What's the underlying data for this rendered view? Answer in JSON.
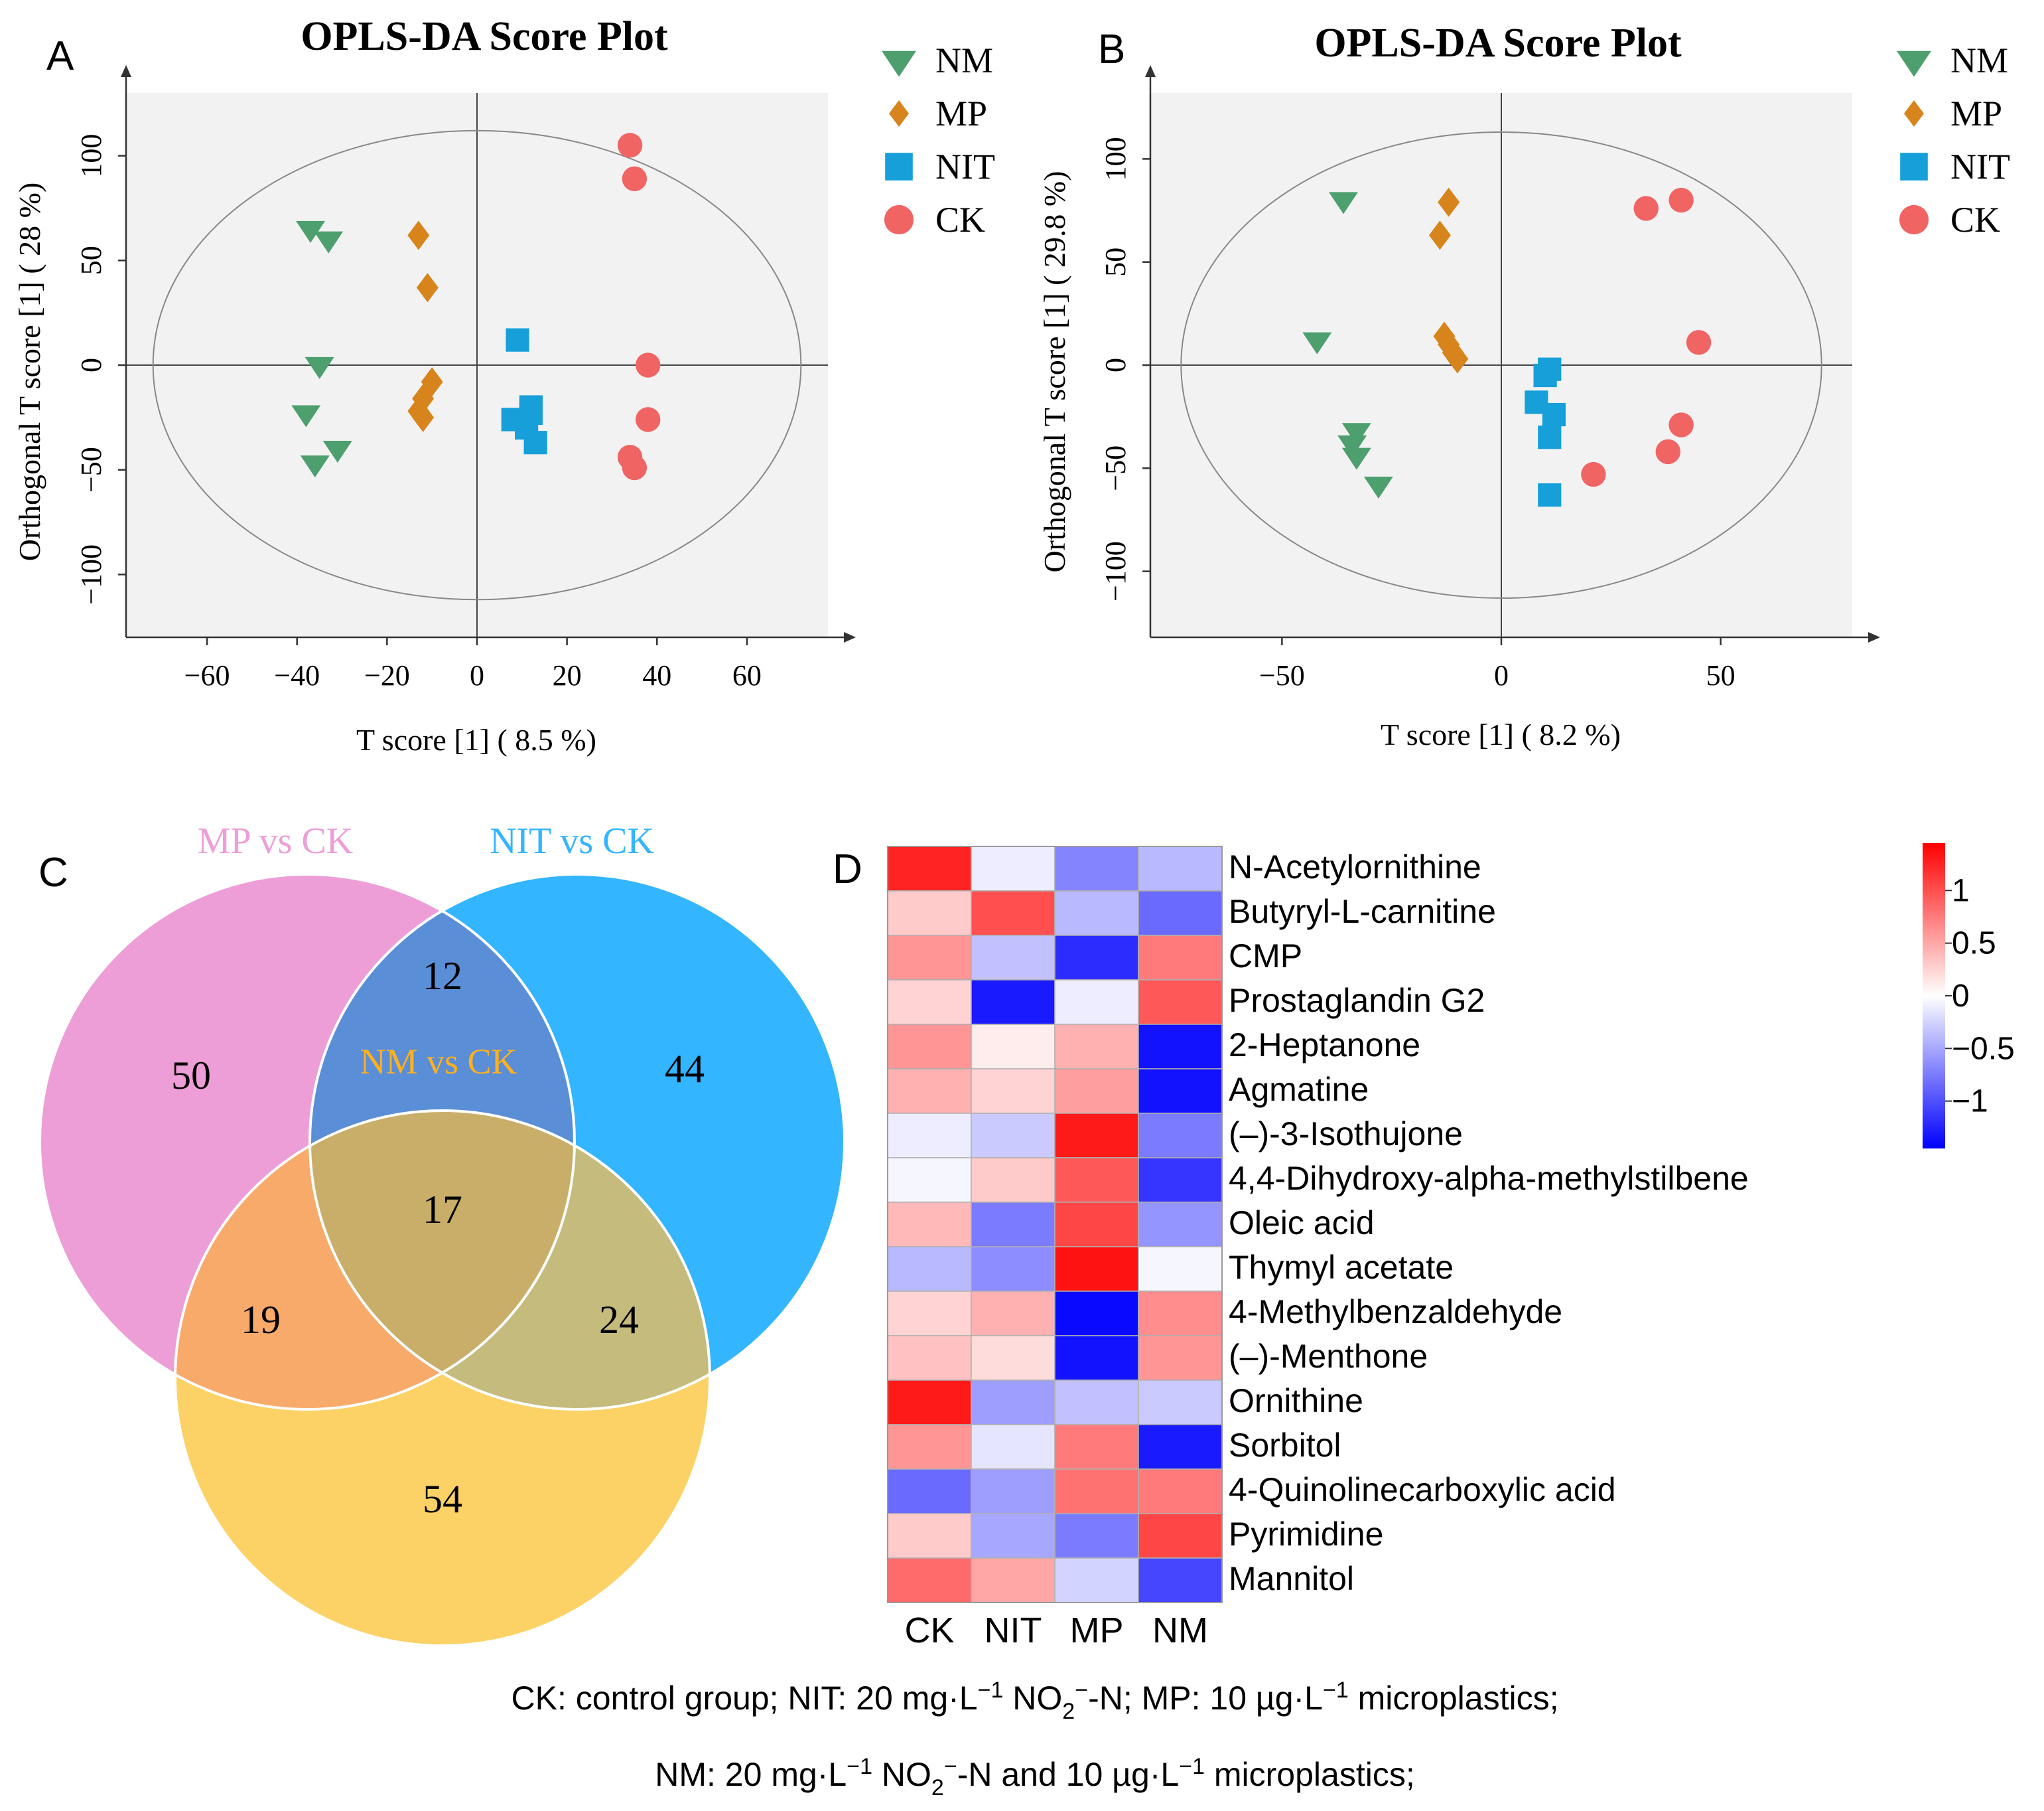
{
  "panel_labels": {
    "a": "A",
    "b": "B",
    "c": "C",
    "d": "D"
  },
  "colors": {
    "NM": "#4d9f6e",
    "MP": "#d8841c",
    "NIT": "#169fd8",
    "CK": "#f06464",
    "venn_mp": "#ee9ed6",
    "venn_nit": "#33b5ff",
    "venn_nm": "#fcd266",
    "venn_mp_nit": "#5a8ed6",
    "venn_mp_nm": "#f8aa6a",
    "venn_nit_nm": "#c4bb7c",
    "venn_all": "#c9ae6a",
    "plot_bg": "#f2f2f2",
    "ellipse": "#888888"
  },
  "chart_data": [
    {
      "id": "A",
      "type": "scatter",
      "title": "OPLS-DA Score Plot",
      "xlabel": "T score [1] ( 8.5 %)",
      "ylabel": "Orthogonal T score [1] ( 28 %)",
      "xlim": [
        -78,
        78
      ],
      "ylim": [
        -130,
        130
      ],
      "xticks": [
        -60,
        -40,
        -20,
        0,
        20,
        40,
        60
      ],
      "xtick_labels": [
        "−60",
        "−40",
        "−20",
        "0",
        "20",
        "40",
        "60"
      ],
      "yticks": [
        -100,
        -50,
        0,
        50,
        100
      ],
      "ytick_labels": [
        "−100",
        "−50",
        "0",
        "50",
        "100"
      ],
      "ellipse": {
        "rx": 72,
        "ry": 112
      },
      "series": [
        {
          "name": "NM",
          "marker": "triangle-down",
          "x": [
            -37,
            -33,
            -35,
            -38,
            -31,
            -36
          ],
          "y": [
            65,
            60,
            0,
            -23,
            -40,
            -47
          ]
        },
        {
          "name": "MP",
          "marker": "diamond",
          "x": [
            -13,
            -11,
            -10,
            -12,
            -13,
            -12
          ],
          "y": [
            62,
            37,
            -8,
            -16,
            -22,
            -25
          ]
        },
        {
          "name": "NIT",
          "marker": "square",
          "x": [
            9,
            12,
            12,
            8,
            11,
            13
          ],
          "y": [
            12,
            -20,
            -23,
            -26,
            -30,
            -37
          ]
        },
        {
          "name": "CK",
          "marker": "circle",
          "x": [
            34,
            35,
            38,
            38,
            34,
            35
          ],
          "y": [
            105,
            89,
            0,
            -26,
            -44,
            -49
          ]
        }
      ]
    },
    {
      "id": "B",
      "type": "scatter",
      "title": "OPLS-DA Score Plot",
      "xlabel": "T score [1] ( 8.2 %)",
      "ylabel": "Orthogonal T score [1] ( 29.8 %)",
      "xlim": [
        -80,
        80
      ],
      "ylim": [
        -132,
        132
      ],
      "xticks": [
        -50,
        0,
        50
      ],
      "xtick_labels": [
        "−50",
        "0",
        "50"
      ],
      "yticks": [
        -100,
        -50,
        0,
        50,
        100
      ],
      "ytick_labels": [
        "−100",
        "−50",
        "0",
        "50",
        "100"
      ],
      "ellipse": {
        "rx": 73,
        "ry": 113
      },
      "series": [
        {
          "name": "NM",
          "marker": "triangle-down",
          "x": [
            -36,
            -42,
            -33,
            -34,
            -33,
            -28
          ],
          "y": [
            80,
            12,
            -32,
            -38,
            -44,
            -58
          ]
        },
        {
          "name": "MP",
          "marker": "diamond",
          "x": [
            -12,
            -14,
            -13,
            -12,
            -11,
            -10
          ],
          "y": [
            79,
            63,
            14,
            10,
            6,
            3
          ]
        },
        {
          "name": "NIT",
          "marker": "square",
          "x": [
            11,
            10,
            8,
            12,
            11,
            11
          ],
          "y": [
            -2,
            -5,
            -18,
            -24,
            -35,
            -63
          ]
        },
        {
          "name": "CK",
          "marker": "circle",
          "x": [
            41,
            33,
            45,
            41,
            38,
            21
          ],
          "y": [
            80,
            76,
            11,
            -29,
            -42,
            -53
          ]
        }
      ]
    },
    {
      "id": "C",
      "type": "venn",
      "sets": [
        "MP vs CK",
        "NIT vs CK",
        "NM vs CK"
      ],
      "counts": {
        "mp_only": "50",
        "nit_only": "44",
        "nm_only": "54",
        "mp_nit": "12",
        "mp_nm": "19",
        "nit_nm": "24",
        "all": "17"
      }
    },
    {
      "id": "D",
      "type": "heatmap",
      "columns": [
        "CK",
        "NIT",
        "MP",
        "NM"
      ],
      "rows": [
        "N-Acetylornithine",
        "Butyryl-L-carnitine",
        "CMP",
        "Prostaglandin G2",
        "2-Heptanone",
        "Agmatine",
        "(–)-3-Isothujone",
        "4,4-Dihydroxy-alpha-methylstilbene",
        "Oleic acid",
        "Thymyl acetate",
        "4-Methylbenzaldehyde",
        "(–)-Menthone",
        "Ornithine",
        "Sorbitol",
        "4-Quinolinecarboxylic acid",
        "Pyrimidine",
        "Mannitol"
      ],
      "values": [
        [
          1.25,
          -0.1,
          -0.7,
          -0.4
        ],
        [
          0.3,
          1.0,
          -0.4,
          -0.85
        ],
        [
          0.6,
          -0.35,
          -1.2,
          0.75
        ],
        [
          0.25,
          -1.3,
          -0.1,
          0.95
        ],
        [
          0.6,
          0.1,
          0.45,
          -1.35
        ],
        [
          0.45,
          0.25,
          0.55,
          -1.35
        ],
        [
          -0.1,
          -0.3,
          1.3,
          -0.75
        ],
        [
          -0.05,
          0.3,
          0.95,
          -1.15
        ],
        [
          0.4,
          -0.75,
          1.05,
          -0.6
        ],
        [
          -0.4,
          -0.65,
          1.35,
          -0.05
        ],
        [
          0.25,
          0.45,
          -1.4,
          0.65
        ],
        [
          0.35,
          0.2,
          -1.35,
          0.6
        ],
        [
          1.3,
          -0.55,
          -0.35,
          -0.3
        ],
        [
          0.6,
          -0.15,
          0.75,
          -1.3
        ],
        [
          -0.85,
          -0.55,
          0.8,
          0.75
        ],
        [
          0.3,
          -0.5,
          -0.75,
          1.05
        ],
        [
          0.85,
          0.5,
          -0.25,
          -1.05
        ]
      ],
      "vmin": -1.45,
      "vmax": 1.45,
      "colorbar_ticks": [
        1,
        0.5,
        0,
        -0.5,
        -1
      ],
      "colorbar_labels": [
        "1",
        "0.5",
        "0",
        "−0.5",
        "−1"
      ]
    }
  ],
  "caption": {
    "line1_a": "CK: control group; NIT: 20 mg·L",
    "sup_neg1": "−1",
    "line1_b": " NO",
    "sub_2": "2",
    "sup_minus": "−",
    "line1_c": "-N; MP: 10 µg·L",
    "line1_d": " microplastics;",
    "line2_a": "NM: 20 mg·L",
    "line2_b": "-N and 10 µg·L"
  }
}
